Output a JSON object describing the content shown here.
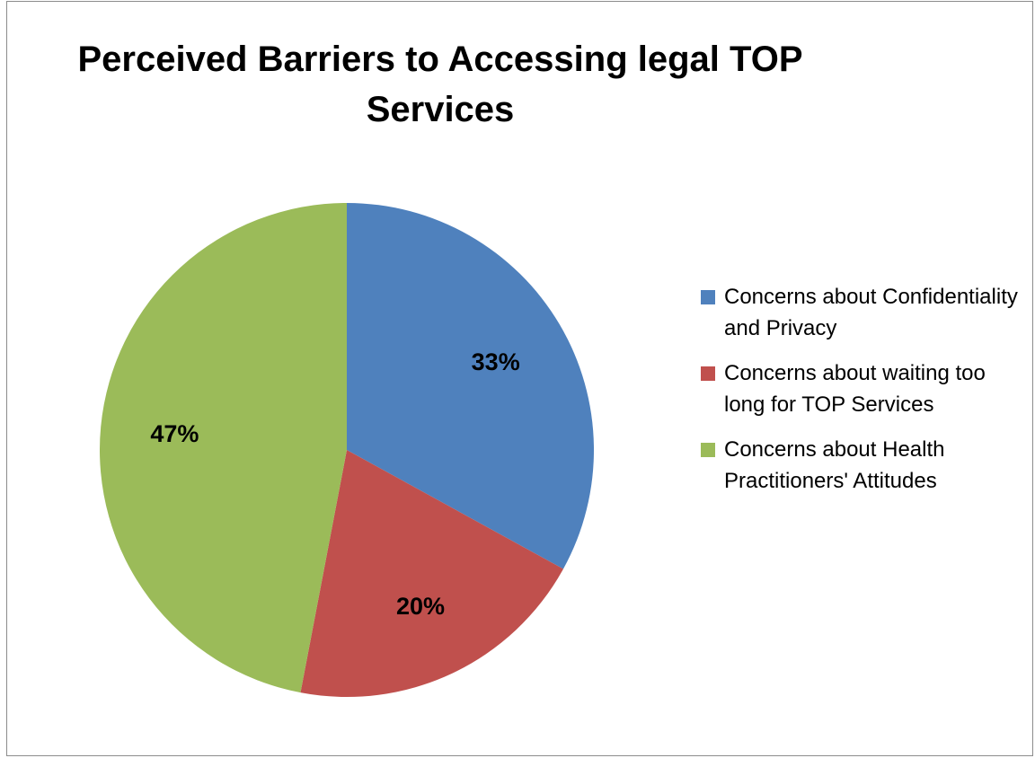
{
  "chart_data": {
    "type": "pie",
    "title": "Perceived Barriers to Accessing legal TOP Services",
    "categories": [
      "Concerns about Confidentiality and Privacy",
      "Concerns about waiting too long for TOP Services",
      "Concerns about Health Practitioners' Attitudes"
    ],
    "values": [
      33,
      20,
      47
    ],
    "data_labels": [
      "33%",
      "20%",
      "47%"
    ],
    "colors": [
      "#4f81bd",
      "#c0504d",
      "#9bbb59"
    ],
    "legend_position": "right"
  }
}
